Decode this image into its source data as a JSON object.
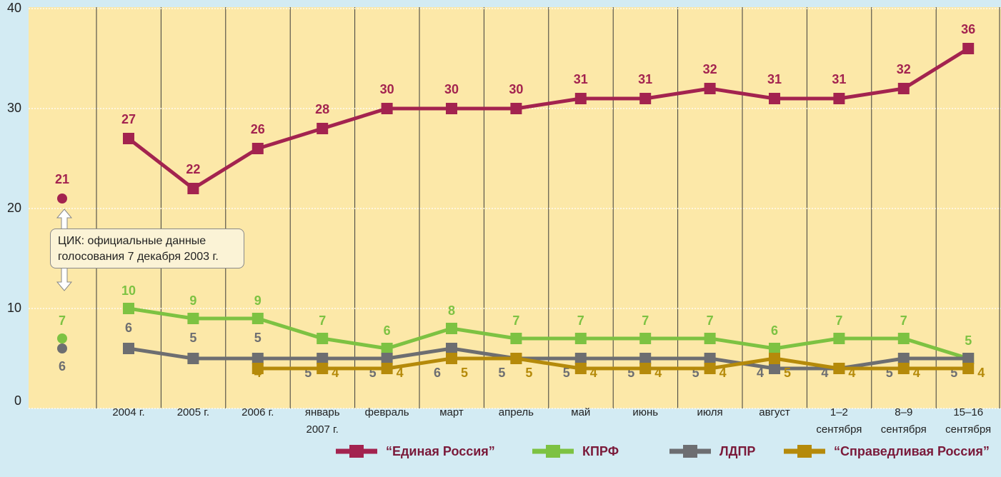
{
  "chart_data": {
    "type": "line",
    "annotation": "ЦИК: официальные данные\nголосования 7 декабря 2003 г.",
    "categories": [
      null,
      "2004 г.",
      "2005 г.",
      "2006 г.",
      "январь\n2007 г.",
      "февраль",
      "март",
      "апрель",
      "май",
      "июнь",
      "июля",
      "август",
      "1–2\nсентября",
      "8–9\nсентября",
      "15–16\nсентября"
    ],
    "series": [
      {
        "name": "“Единая Россия”",
        "color": "#a3234f",
        "values": [
          21,
          27,
          22,
          26,
          28,
          30,
          30,
          30,
          31,
          31,
          32,
          31,
          31,
          32,
          36
        ]
      },
      {
        "name": "КПРФ",
        "color": "#7dc242",
        "values": [
          7,
          10,
          9,
          9,
          7,
          6,
          8,
          7,
          7,
          7,
          7,
          6,
          7,
          7,
          5
        ]
      },
      {
        "name": "ЛДПР",
        "color": "#6d6e71",
        "values": [
          6,
          6,
          5,
          5,
          5,
          5,
          6,
          5,
          5,
          5,
          5,
          4,
          4,
          5,
          5
        ]
      },
      {
        "name": "“Справедливая Россия”",
        "color": "#b58a0a",
        "values": [
          null,
          null,
          null,
          4,
          4,
          4,
          5,
          5,
          4,
          4,
          4,
          5,
          4,
          4,
          4
        ]
      }
    ],
    "ylim": [
      0,
      40
    ],
    "yticks": [
      0,
      10,
      20,
      30,
      40
    ],
    "grid": true
  }
}
